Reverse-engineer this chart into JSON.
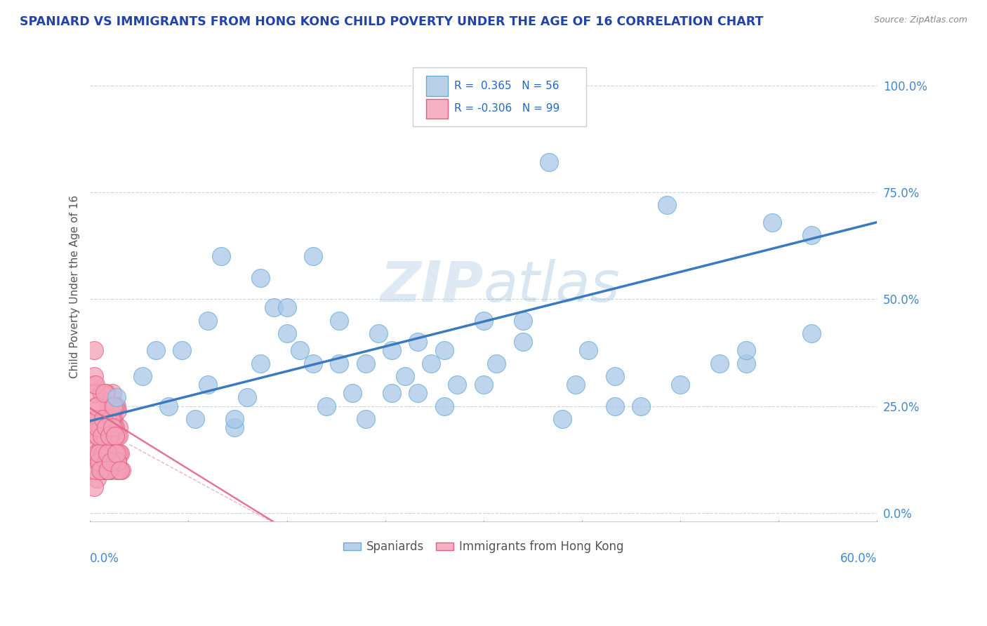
{
  "title": "SPANIARD VS IMMIGRANTS FROM HONG KONG CHILD POVERTY UNDER THE AGE OF 16 CORRELATION CHART",
  "source": "Source: ZipAtlas.com",
  "ylabel": "Child Poverty Under the Age of 16",
  "ytick_values": [
    0.0,
    0.25,
    0.5,
    0.75,
    1.0
  ],
  "ytick_labels": [
    "0.0%",
    "25.0%",
    "50.0%",
    "75.0%",
    "100.0%"
  ],
  "xlim": [
    0.0,
    0.6
  ],
  "ylim": [
    -0.02,
    1.08
  ],
  "legend_r_blue": "0.365",
  "legend_n_blue": "56",
  "legend_r_pink": "-0.306",
  "legend_n_pink": "99",
  "blue_color": "#a8c8e8",
  "blue_edge": "#6aaad4",
  "pink_color": "#f4a0b8",
  "pink_edge": "#e06080",
  "trendline_blue_color": "#3a7abf",
  "trendline_pink_color": "#e06888",
  "background_color": "#ffffff",
  "blue_trend_x0": 0.0,
  "blue_trend_y0": 0.215,
  "blue_trend_x1": 0.6,
  "blue_trend_y1": 0.68,
  "pink_trend_x0": 0.0,
  "pink_trend_y0": 0.245,
  "pink_trend_x1": 0.15,
  "pink_trend_y1": -0.04,
  "blue_x": [
    0.02,
    0.04,
    0.05,
    0.06,
    0.08,
    0.09,
    0.1,
    0.11,
    0.12,
    0.13,
    0.14,
    0.15,
    0.16,
    0.17,
    0.18,
    0.19,
    0.2,
    0.21,
    0.22,
    0.23,
    0.24,
    0.25,
    0.26,
    0.27,
    0.28,
    0.3,
    0.31,
    0.33,
    0.35,
    0.37,
    0.38,
    0.4,
    0.42,
    0.44,
    0.48,
    0.5,
    0.52,
    0.55,
    0.07,
    0.09,
    0.11,
    0.13,
    0.15,
    0.17,
    0.19,
    0.21,
    0.23,
    0.25,
    0.27,
    0.3,
    0.33,
    0.36,
    0.4,
    0.45,
    0.5,
    0.55
  ],
  "blue_y": [
    0.27,
    0.32,
    0.38,
    0.25,
    0.22,
    0.45,
    0.6,
    0.2,
    0.27,
    0.55,
    0.48,
    0.42,
    0.38,
    0.35,
    0.25,
    0.45,
    0.28,
    0.35,
    0.42,
    0.28,
    0.32,
    0.4,
    0.35,
    0.38,
    0.3,
    0.45,
    0.35,
    0.45,
    0.82,
    0.3,
    0.38,
    0.32,
    0.25,
    0.72,
    0.35,
    0.35,
    0.68,
    0.65,
    0.38,
    0.3,
    0.22,
    0.35,
    0.48,
    0.6,
    0.35,
    0.22,
    0.38,
    0.28,
    0.25,
    0.3,
    0.4,
    0.22,
    0.25,
    0.3,
    0.38,
    0.42
  ],
  "pink_x": [
    0.005,
    0.006,
    0.007,
    0.008,
    0.009,
    0.01,
    0.011,
    0.012,
    0.013,
    0.014,
    0.015,
    0.016,
    0.017,
    0.018,
    0.019,
    0.02,
    0.021,
    0.022,
    0.023,
    0.024,
    0.003,
    0.004,
    0.005,
    0.006,
    0.007,
    0.008,
    0.009,
    0.01,
    0.011,
    0.012,
    0.013,
    0.014,
    0.015,
    0.016,
    0.017,
    0.018,
    0.019,
    0.02,
    0.021,
    0.022,
    0.003,
    0.004,
    0.005,
    0.006,
    0.007,
    0.008,
    0.009,
    0.01,
    0.011,
    0.012,
    0.013,
    0.014,
    0.015,
    0.016,
    0.017,
    0.018,
    0.019,
    0.02,
    0.021,
    0.022,
    0.003,
    0.004,
    0.005,
    0.006,
    0.007,
    0.008,
    0.009,
    0.01,
    0.011,
    0.012,
    0.013,
    0.014,
    0.015,
    0.016,
    0.017,
    0.018,
    0.019,
    0.02,
    0.021,
    0.022,
    0.003,
    0.004,
    0.005,
    0.006,
    0.007,
    0.008,
    0.009,
    0.01,
    0.011,
    0.012,
    0.013,
    0.014,
    0.015,
    0.016,
    0.017,
    0.018,
    0.019,
    0.02,
    0.023
  ],
  "pink_y": [
    0.15,
    0.12,
    0.18,
    0.1,
    0.2,
    0.14,
    0.22,
    0.17,
    0.12,
    0.25,
    0.2,
    0.15,
    0.28,
    0.22,
    0.18,
    0.12,
    0.24,
    0.2,
    0.14,
    0.1,
    0.3,
    0.25,
    0.08,
    0.12,
    0.2,
    0.15,
    0.1,
    0.18,
    0.22,
    0.28,
    0.2,
    0.14,
    0.1,
    0.18,
    0.22,
    0.12,
    0.2,
    0.25,
    0.18,
    0.14,
    0.06,
    0.1,
    0.14,
    0.18,
    0.22,
    0.12,
    0.1,
    0.14,
    0.18,
    0.1,
    0.22,
    0.18,
    0.12,
    0.1,
    0.14,
    0.2,
    0.25,
    0.18,
    0.12,
    0.1,
    0.32,
    0.28,
    0.22,
    0.18,
    0.12,
    0.2,
    0.28,
    0.22,
    0.18,
    0.12,
    0.1,
    0.14,
    0.18,
    0.22,
    0.25,
    0.18,
    0.14,
    0.1,
    0.12,
    0.18,
    0.38,
    0.3,
    0.25,
    0.2,
    0.14,
    0.1,
    0.18,
    0.22,
    0.28,
    0.2,
    0.14,
    0.1,
    0.18,
    0.12,
    0.2,
    0.25,
    0.18,
    0.14,
    0.1
  ]
}
